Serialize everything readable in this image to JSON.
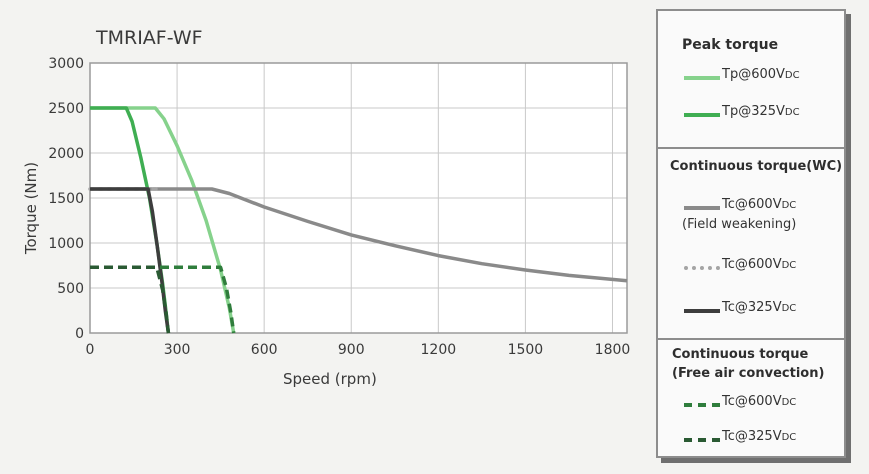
{
  "chart_data": {
    "type": "line",
    "title": "TMRIAF-WF",
    "xlabel": "Speed (rpm)",
    "ylabel": "Torque (Nm)",
    "xlim": [
      0,
      1850
    ],
    "ylim": [
      0,
      3000
    ],
    "x_ticks": [
      0,
      300,
      600,
      900,
      1200,
      1500,
      1800
    ],
    "y_ticks": [
      0,
      500,
      1000,
      1500,
      2000,
      2500,
      3000
    ],
    "grid": true,
    "legend_position": "right",
    "series": [
      {
        "key": "tp600",
        "name": "Tp@600V",
        "subscript": "DC",
        "color": "#86d28c",
        "style": "solid",
        "x": [
          0,
          225,
          255,
          300,
          350,
          400,
          450,
          480,
          495
        ],
        "y": [
          2500,
          2500,
          2380,
          2080,
          1700,
          1250,
          700,
          280,
          0
        ]
      },
      {
        "key": "tp325",
        "name": "Tp@325V",
        "subscript": "DC",
        "color": "#3fae52",
        "style": "solid",
        "x": [
          0,
          125,
          145,
          175,
          205,
          230,
          250,
          262,
          270
        ],
        "y": [
          2500,
          2500,
          2350,
          1950,
          1500,
          1000,
          550,
          230,
          0
        ]
      },
      {
        "key": "tc600fw",
        "name": "Tc@600V",
        "subscript": "DC",
        "note": "(Field weakening)",
        "color": "#8a8a8a",
        "style": "solid",
        "x": [
          0,
          420,
          480,
          600,
          750,
          900,
          1050,
          1200,
          1350,
          1500,
          1650,
          1850
        ],
        "y": [
          1600,
          1600,
          1550,
          1400,
          1240,
          1090,
          970,
          860,
          770,
          700,
          640,
          580
        ]
      },
      {
        "key": "tc600",
        "name": "Tc@600V",
        "subscript": "DC",
        "color": "#a4a4a4",
        "style": "dotted",
        "x": [
          0,
          240
        ],
        "y": [
          1600,
          1600
        ]
      },
      {
        "key": "tc325",
        "name": "Tc@325V",
        "subscript": "DC",
        "color": "#3d3d3d",
        "style": "solid",
        "x": [
          0,
          200,
          215,
          232,
          248,
          260,
          270
        ],
        "y": [
          1600,
          1600,
          1350,
          960,
          560,
          230,
          0
        ]
      },
      {
        "key": "tc600air",
        "name": "Tc@600V",
        "subscript": "DC",
        "color": "#2f7d3c",
        "style": "dashed",
        "x": [
          0,
          450,
          470,
          485,
          495
        ],
        "y": [
          730,
          730,
          500,
          230,
          0
        ]
      },
      {
        "key": "tc325air",
        "name": "Tc@325V",
        "subscript": "DC",
        "color": "#2a5a33",
        "style": "dashed",
        "x": [
          0,
          230,
          250,
          262,
          270
        ],
        "y": [
          730,
          730,
          480,
          220,
          0
        ]
      }
    ]
  },
  "legend": {
    "sections": [
      {
        "heading": "Peak torque",
        "items": [
          "tp600",
          "tp325"
        ]
      },
      {
        "heading": "Continuous torque(WC)",
        "items": [
          "tc600fw",
          "tc600",
          "tc325"
        ]
      },
      {
        "heading": "Continuous torque",
        "heading2": "(Free air convection)",
        "items": [
          "tc600air",
          "tc325air"
        ]
      }
    ]
  }
}
